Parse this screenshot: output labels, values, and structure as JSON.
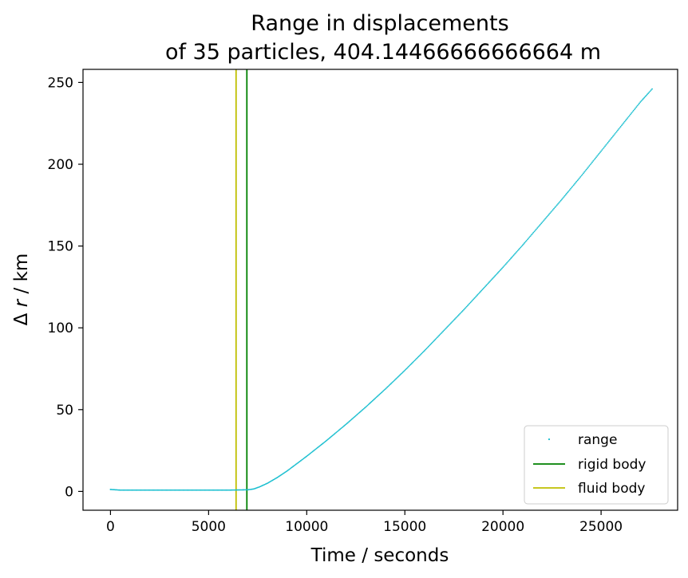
{
  "chart_data": {
    "type": "scatter",
    "title_line1": "Range in displacements",
    "title_line2": "of 35 particles, 404.14466666666664 m",
    "xlabel": "Time / seconds",
    "ylabel_prefix": "Δ ",
    "ylabel_var": "r",
    "ylabel_suffix": " / km",
    "xlim": [
      -1400,
      28900
    ],
    "ylim": [
      -11.5,
      258
    ],
    "x_ticks": [
      0,
      5000,
      10000,
      15000,
      20000,
      25000
    ],
    "x_tick_labels": [
      "0",
      "5000",
      "10000",
      "15000",
      "20000",
      "25000"
    ],
    "y_ticks": [
      0,
      50,
      100,
      150,
      200,
      250
    ],
    "y_tick_labels": [
      "0",
      "50",
      "100",
      "150",
      "200",
      "250"
    ],
    "grid": false,
    "legend_position": "lower-right",
    "series": [
      {
        "name": "range",
        "marker": "point",
        "color": "#17becf",
        "x": [
          0,
          500,
          1000,
          2000,
          3000,
          4000,
          5000,
          6000,
          6500,
          7000,
          7300,
          7600,
          8000,
          8500,
          9000,
          9500,
          10000,
          11000,
          12000,
          13000,
          14000,
          15000,
          16000,
          17000,
          18000,
          19000,
          20000,
          21000,
          22000,
          23000,
          24000,
          25000,
          26000,
          27000,
          27600
        ],
        "y": [
          1.2,
          0.8,
          0.8,
          0.8,
          0.8,
          0.8,
          0.8,
          0.8,
          0.9,
          1.0,
          1.5,
          2.8,
          5.0,
          8.5,
          12.5,
          17.0,
          21.5,
          31.0,
          41.0,
          51.5,
          62.5,
          74.0,
          86.0,
          98.5,
          111.0,
          124.0,
          137.0,
          150.5,
          164.5,
          178.5,
          193.0,
          208.0,
          223.0,
          238.0,
          246.0
        ]
      }
    ],
    "vlines": [
      {
        "name": "rigid body",
        "x": 6950,
        "color": "#008000"
      },
      {
        "name": "fluid body",
        "x": 6400,
        "color": "#bfbf00"
      }
    ],
    "legend": [
      {
        "label": "range",
        "kind": "point",
        "color": "#17becf"
      },
      {
        "label": "rigid body",
        "kind": "line",
        "color": "#008000"
      },
      {
        "label": "fluid body",
        "kind": "line",
        "color": "#bfbf00"
      }
    ]
  }
}
